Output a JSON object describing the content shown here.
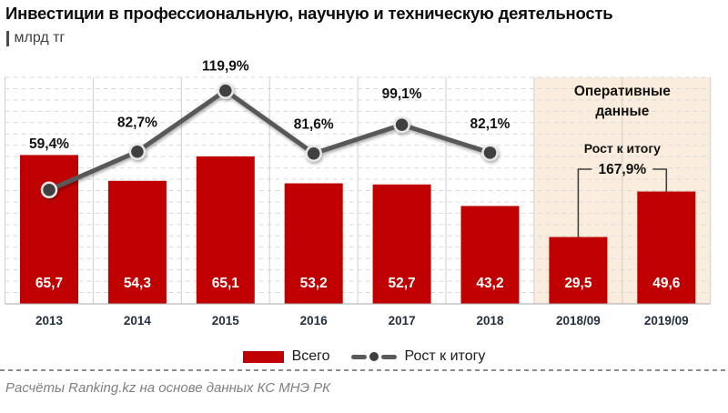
{
  "title": "Инвестиции в профессиональную, научную и техническую деятельность",
  "subtitle": "млрд тг",
  "footer": "Расчёты Ranking.kz на основе данных КС МНЭ РК",
  "legend": {
    "bar_label": "Всего",
    "line_label": "Рост к итогу"
  },
  "chart_data": {
    "type": "bar",
    "title": "Инвестиции в профессиональную, научную и техническую деятельность",
    "ylabel": "млрд тг",
    "categories": [
      "2013",
      "2014",
      "2015",
      "2016",
      "2017",
      "2018",
      "2018/09",
      "2019/09"
    ],
    "series": [
      {
        "name": "Всего",
        "type": "bar",
        "values": [
          65.7,
          54.3,
          65.1,
          53.2,
          52.7,
          43.2,
          29.5,
          49.6
        ]
      },
      {
        "name": "Рост к итогу",
        "type": "line",
        "values": [
          59.4,
          82.7,
          119.9,
          81.6,
          99.1,
          82.1,
          null,
          null
        ]
      }
    ],
    "bar_ylim": [
      0,
      100
    ],
    "line_ylim": [
      -10,
      128
    ],
    "grid": true,
    "legend_position": "bottom",
    "decimal_separator": ",",
    "operational_panel": {
      "title_lines": [
        "Оперативные",
        "данные"
      ],
      "start_category": "2018/09",
      "annotation": {
        "label": "Рост к итогу",
        "value": 167.9,
        "value_display": "167,9%"
      },
      "bg_color": "#faeddd"
    },
    "colors": {
      "bar": "#c00000",
      "line": "#595959",
      "marker": "#3f3f3f",
      "marker_ring": "#e7e7e7",
      "grid": "#d9d9d9",
      "separator": "#cfcfcf",
      "axis": "#a9a9a9",
      "bracket": "#404040"
    }
  }
}
